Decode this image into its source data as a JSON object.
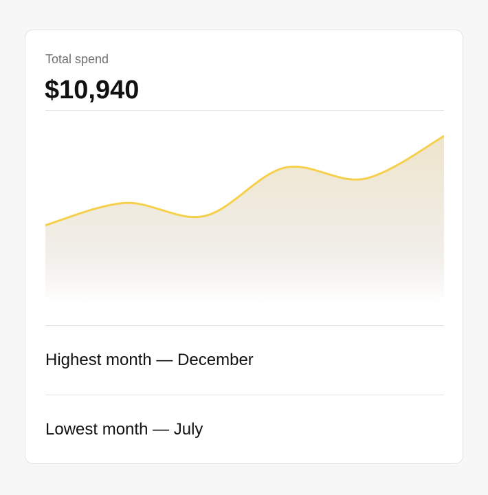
{
  "label": "Total spend",
  "total": "$10,940",
  "chart_data": {
    "type": "area",
    "categories": [
      null,
      null,
      null,
      null,
      null,
      null
    ],
    "values": [
      42,
      54,
      47,
      73,
      67,
      90
    ],
    "color": "#f5d04c",
    "ylim": [
      0,
      100
    ]
  },
  "highlights": [
    "Highest month — December",
    "Lowest month — July"
  ]
}
